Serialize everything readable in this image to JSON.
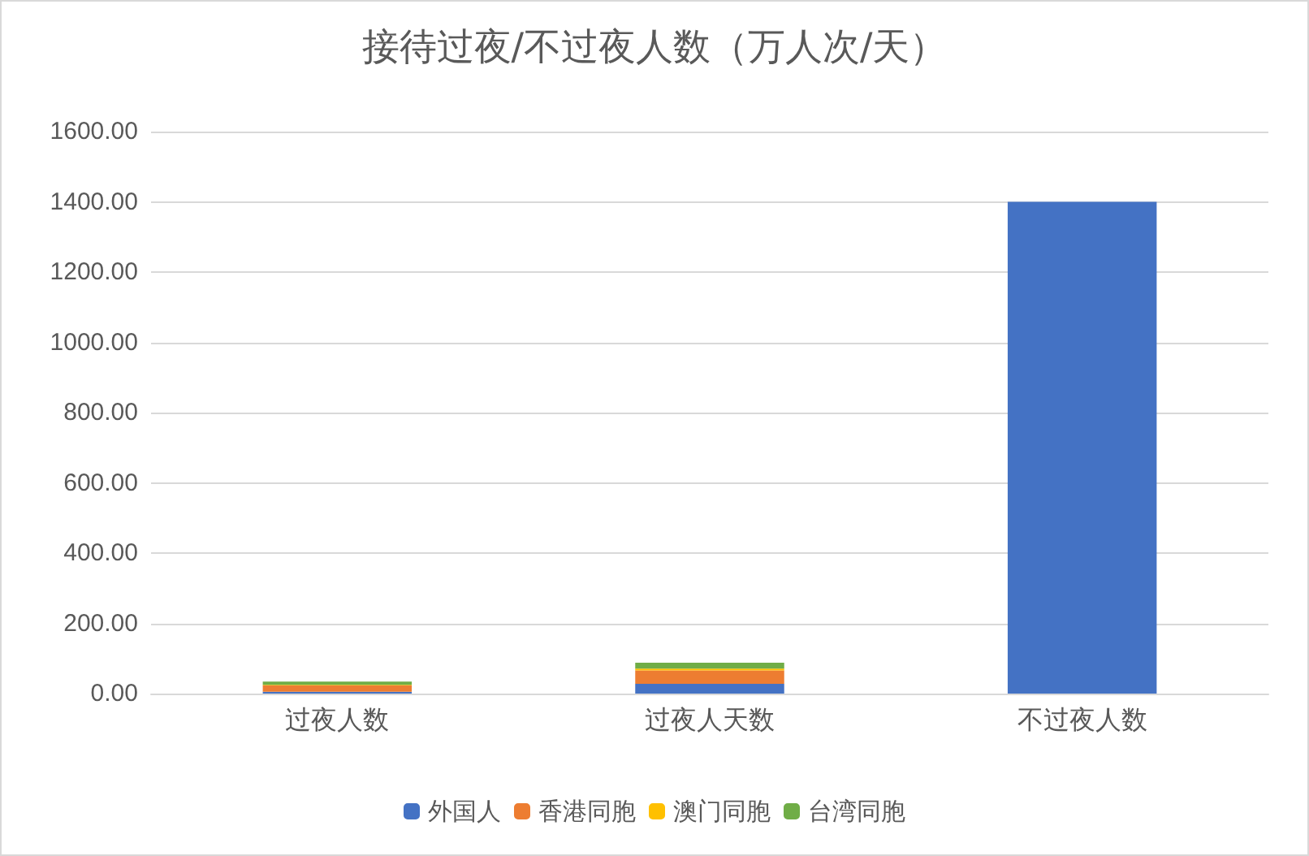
{
  "chart_data": {
    "type": "bar",
    "title": "接待过夜/不过夜人数（万人次/天）",
    "categories": [
      "过夜人数",
      "过夜人天数",
      "不过夜人数"
    ],
    "stacked": true,
    "series": [
      {
        "name": "外国人",
        "color": "#4472c4",
        "values": [
          5,
          28,
          1400
        ]
      },
      {
        "name": "香港同胞",
        "color": "#ed7d31",
        "values": [
          18,
          38,
          0
        ]
      },
      {
        "name": "澳门同胞",
        "color": "#ffc000",
        "values": [
          2,
          5,
          0
        ]
      },
      {
        "name": "台湾同胞",
        "color": "#70ad47",
        "values": [
          9,
          17,
          0
        ]
      }
    ],
    "ylim": [
      0,
      1600
    ],
    "yticks": [
      {
        "value": 0,
        "label": "0.00"
      },
      {
        "value": 200,
        "label": "200.00"
      },
      {
        "value": 400,
        "label": "400.00"
      },
      {
        "value": 600,
        "label": "600.00"
      },
      {
        "value": 800,
        "label": "800.00"
      },
      {
        "value": 1000,
        "label": "1000.00"
      },
      {
        "value": 1200,
        "label": "1200.00"
      },
      {
        "value": 1400,
        "label": "1400.00"
      },
      {
        "value": 1600,
        "label": "1600.00"
      }
    ],
    "grid": "y",
    "legend": "bottom"
  }
}
